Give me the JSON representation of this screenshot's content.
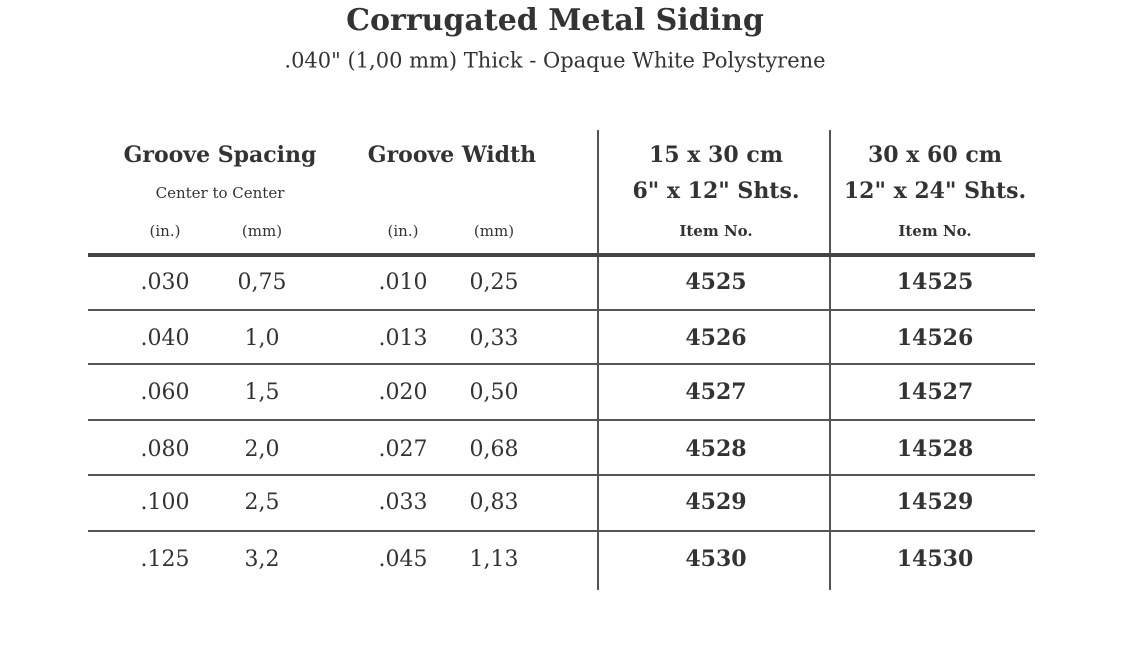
{
  "header": {
    "title": "Corrugated Metal Siding",
    "subtitle": ".040\" (1,00 mm) Thick - Opaque White Polystyrene"
  },
  "table": {
    "groups": [
      {
        "label": "Groove Spacing",
        "note": "Center to Center",
        "units": [
          "(in.)",
          "(mm)"
        ]
      },
      {
        "label": "Groove Width",
        "units": [
          "(in.)",
          "(mm)"
        ]
      },
      {
        "label": "15 x 30 cm",
        "note": "6\" x 12\" Shts.",
        "units": [
          "Item No."
        ]
      },
      {
        "label": "30 x 60 cm",
        "note": "12\" x 24\" Shts.",
        "units": [
          "Item No."
        ]
      }
    ],
    "rows": [
      [
        ".030",
        "0,75",
        ".010",
        "0,25",
        "4525",
        "14525"
      ],
      [
        ".040",
        "1,0",
        ".013",
        "0,33",
        "4526",
        "14526"
      ],
      [
        ".060",
        "1,5",
        ".020",
        "0,50",
        "4527",
        "14527"
      ],
      [
        ".080",
        "2,0",
        ".027",
        "0,68",
        "4528",
        "14528"
      ],
      [
        ".100",
        "2,5",
        ".033",
        "0,83",
        "4529",
        "14529"
      ],
      [
        ".125",
        "3,2",
        ".045",
        "1,13",
        "4530",
        "14530"
      ]
    ]
  }
}
